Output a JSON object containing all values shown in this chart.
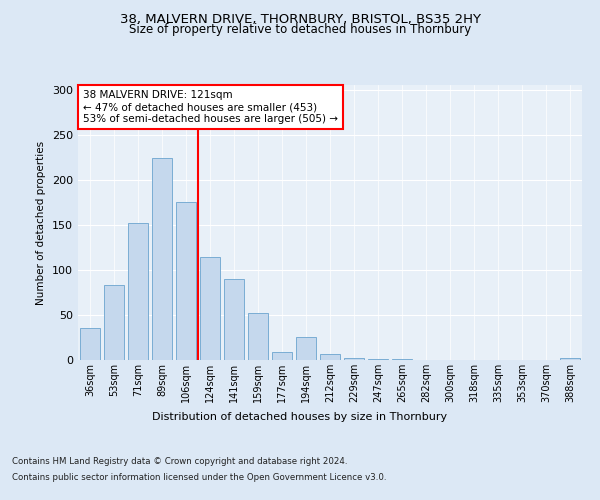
{
  "title1": "38, MALVERN DRIVE, THORNBURY, BRISTOL, BS35 2HY",
  "title2": "Size of property relative to detached houses in Thornbury",
  "xlabel": "Distribution of detached houses by size in Thornbury",
  "ylabel": "Number of detached properties",
  "bar_labels": [
    "36sqm",
    "53sqm",
    "71sqm",
    "89sqm",
    "106sqm",
    "124sqm",
    "141sqm",
    "159sqm",
    "177sqm",
    "194sqm",
    "212sqm",
    "229sqm",
    "247sqm",
    "265sqm",
    "282sqm",
    "300sqm",
    "318sqm",
    "335sqm",
    "353sqm",
    "370sqm",
    "388sqm"
  ],
  "bar_values": [
    35,
    83,
    152,
    224,
    175,
    114,
    90,
    52,
    9,
    25,
    7,
    2,
    1,
    1,
    0,
    0,
    0,
    0,
    0,
    0,
    2
  ],
  "bar_color": "#c5d8ed",
  "bar_edge_color": "#7aadd4",
  "vline_x": 4.5,
  "vline_color": "red",
  "annotation_text": "38 MALVERN DRIVE: 121sqm\n← 47% of detached houses are smaller (453)\n53% of semi-detached houses are larger (505) →",
  "annotation_box_color": "white",
  "annotation_box_edge": "red",
  "ylim": [
    0,
    305
  ],
  "yticks": [
    0,
    50,
    100,
    150,
    200,
    250,
    300
  ],
  "footer_line1": "Contains HM Land Registry data © Crown copyright and database right 2024.",
  "footer_line2": "Contains public sector information licensed under the Open Government Licence v3.0.",
  "bg_color": "#dce8f5",
  "plot_bg_color": "#e8f0f8"
}
